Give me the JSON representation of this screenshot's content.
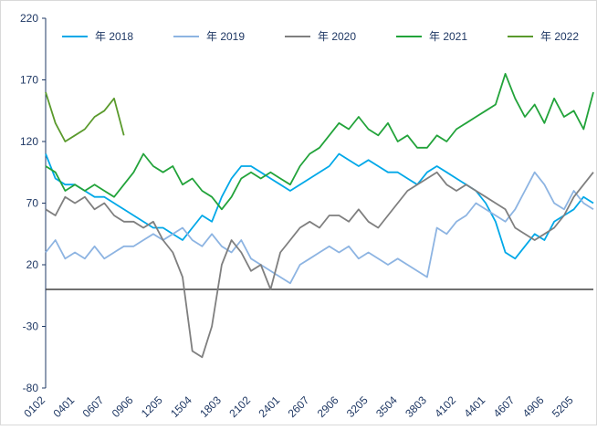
{
  "chart_data": {
    "type": "line",
    "categories": [
      "0102",
      null,
      null,
      "0401",
      null,
      null,
      "0607",
      null,
      null,
      "0906",
      null,
      null,
      "1205",
      null,
      null,
      "1504",
      null,
      null,
      "1803",
      null,
      null,
      "2102",
      null,
      null,
      "2401",
      null,
      null,
      "2607",
      null,
      null,
      "2906",
      null,
      null,
      "3205",
      null,
      null,
      "3504",
      null,
      null,
      "3803",
      null,
      null,
      "4102",
      null,
      null,
      "4401",
      null,
      null,
      "4607",
      null,
      null,
      "4906",
      null,
      null,
      "5205",
      null,
      null
    ],
    "series": [
      {
        "name": "年 2018",
        "color": "#00a8e8",
        "values": [
          110,
          90,
          85,
          85,
          80,
          75,
          75,
          70,
          65,
          60,
          55,
          50,
          50,
          45,
          40,
          50,
          60,
          55,
          75,
          90,
          100,
          100,
          95,
          90,
          85,
          80,
          85,
          90,
          95,
          100,
          110,
          105,
          100,
          105,
          100,
          95,
          95,
          90,
          85,
          95,
          100,
          95,
          90,
          85,
          80,
          70,
          55,
          30,
          25,
          35,
          45,
          40,
          55,
          60,
          65,
          75,
          70
        ]
      },
      {
        "name": "年 2019",
        "color": "#8db4e2",
        "values": [
          30,
          40,
          25,
          30,
          25,
          35,
          25,
          30,
          35,
          35,
          40,
          45,
          40,
          45,
          50,
          40,
          35,
          45,
          35,
          30,
          40,
          25,
          20,
          15,
          10,
          5,
          20,
          25,
          30,
          35,
          30,
          35,
          25,
          30,
          25,
          20,
          25,
          20,
          15,
          10,
          50,
          45,
          55,
          60,
          70,
          65,
          60,
          55,
          65,
          80,
          95,
          85,
          70,
          65,
          80,
          70,
          65
        ]
      },
      {
        "name": "年 2020",
        "color": "#7f7f7f",
        "values": [
          65,
          60,
          75,
          70,
          75,
          65,
          70,
          60,
          55,
          55,
          50,
          55,
          40,
          30,
          10,
          -50,
          -55,
          -30,
          20,
          40,
          30,
          15,
          20,
          0,
          30,
          40,
          50,
          55,
          50,
          60,
          60,
          55,
          65,
          55,
          50,
          60,
          70,
          80,
          85,
          90,
          95,
          85,
          80,
          85,
          80,
          75,
          70,
          65,
          50,
          45,
          40,
          45,
          50,
          60,
          75,
          85,
          95
        ]
      },
      {
        "name": "年 2021",
        "color": "#22a33a",
        "values": [
          100,
          95,
          80,
          85,
          80,
          85,
          80,
          75,
          85,
          95,
          110,
          100,
          95,
          100,
          85,
          90,
          80,
          75,
          65,
          75,
          90,
          95,
          90,
          95,
          90,
          85,
          100,
          110,
          115,
          125,
          135,
          130,
          140,
          130,
          125,
          135,
          120,
          125,
          115,
          115,
          125,
          120,
          130,
          135,
          140,
          145,
          150,
          175,
          155,
          140,
          150,
          135,
          155,
          140,
          145,
          130,
          160
        ]
      },
      {
        "name": "年 2022",
        "color": "#5a9a2c",
        "values": [
          160,
          135,
          120,
          125,
          130,
          140,
          145,
          155,
          125,
          null,
          null,
          null,
          null,
          null,
          null,
          null,
          null,
          null,
          null,
          null,
          null,
          null,
          null,
          null,
          null,
          null,
          null,
          null,
          null,
          null,
          null,
          null,
          null,
          null,
          null,
          null,
          null,
          null,
          null,
          null,
          null,
          null,
          null,
          null,
          null,
          null,
          null,
          null,
          null,
          null,
          null,
          null,
          null,
          null,
          null,
          null,
          null
        ]
      }
    ],
    "ylim": [
      -80,
      220
    ],
    "yticks": [
      -80,
      -30,
      20,
      70,
      120,
      170,
      220
    ]
  }
}
